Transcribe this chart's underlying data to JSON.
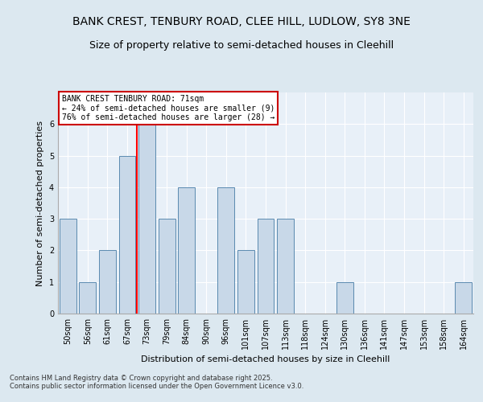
{
  "title1": "BANK CREST, TENBURY ROAD, CLEE HILL, LUDLOW, SY8 3NE",
  "title2": "Size of property relative to semi-detached houses in Cleehill",
  "xlabel": "Distribution of semi-detached houses by size in Cleehill",
  "ylabel": "Number of semi-detached properties",
  "categories": [
    "50sqm",
    "56sqm",
    "61sqm",
    "67sqm",
    "73sqm",
    "79sqm",
    "84sqm",
    "90sqm",
    "96sqm",
    "101sqm",
    "107sqm",
    "113sqm",
    "118sqm",
    "124sqm",
    "130sqm",
    "136sqm",
    "141sqm",
    "147sqm",
    "153sqm",
    "158sqm",
    "164sqm"
  ],
  "values": [
    3,
    1,
    2,
    5,
    6,
    3,
    4,
    0,
    4,
    2,
    3,
    3,
    0,
    0,
    1,
    0,
    0,
    0,
    0,
    0,
    1
  ],
  "bar_color": "#c8d8e8",
  "bar_edge_color": "#5a8ab0",
  "red_line_index": 3.5,
  "annotation_text": "BANK CREST TENBURY ROAD: 71sqm\n← 24% of semi-detached houses are smaller (9)\n76% of semi-detached houses are larger (28) →",
  "annotation_box_color": "#ffffff",
  "annotation_box_edge": "#cc0000",
  "ylim": [
    0,
    7
  ],
  "yticks": [
    0,
    1,
    2,
    3,
    4,
    5,
    6
  ],
  "background_color": "#dce8f0",
  "plot_background": "#e8f0f8",
  "footer1": "Contains HM Land Registry data © Crown copyright and database right 2025.",
  "footer2": "Contains public sector information licensed under the Open Government Licence v3.0.",
  "title_fontsize": 10,
  "subtitle_fontsize": 9,
  "axis_label_fontsize": 8,
  "tick_fontsize": 7,
  "annotation_fontsize": 7
}
